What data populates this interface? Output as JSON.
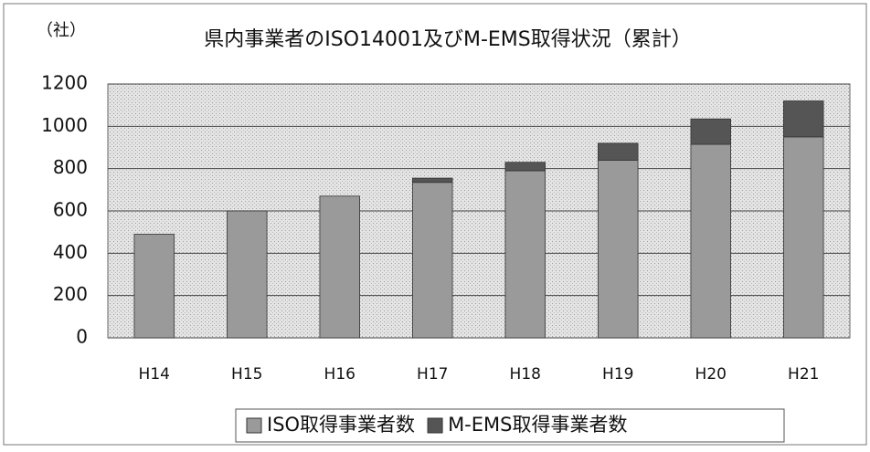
{
  "chart_data": {
    "type": "stacked_bar",
    "title": "県内事業者のISO14001及びM-EMS取得状況（累計）",
    "y_label": "（社）",
    "categories": [
      "H14",
      "H15",
      "H16",
      "H17",
      "H18",
      "H19",
      "H20",
      "H21"
    ],
    "series": [
      {
        "name": "ISO取得事業者数",
        "color": "#9a9a9a",
        "values": [
          490,
          600,
          670,
          735,
          790,
          840,
          915,
          950
        ]
      },
      {
        "name": "M-EMS取得事業者数",
        "color": "#555555",
        "values": [
          0,
          0,
          0,
          20,
          40,
          80,
          120,
          170
        ]
      }
    ],
    "ylim": [
      0,
      1200
    ],
    "yticks": [
      0,
      200,
      400,
      600,
      800,
      1000,
      1200
    ],
    "grid": true,
    "legend": "bottom"
  }
}
